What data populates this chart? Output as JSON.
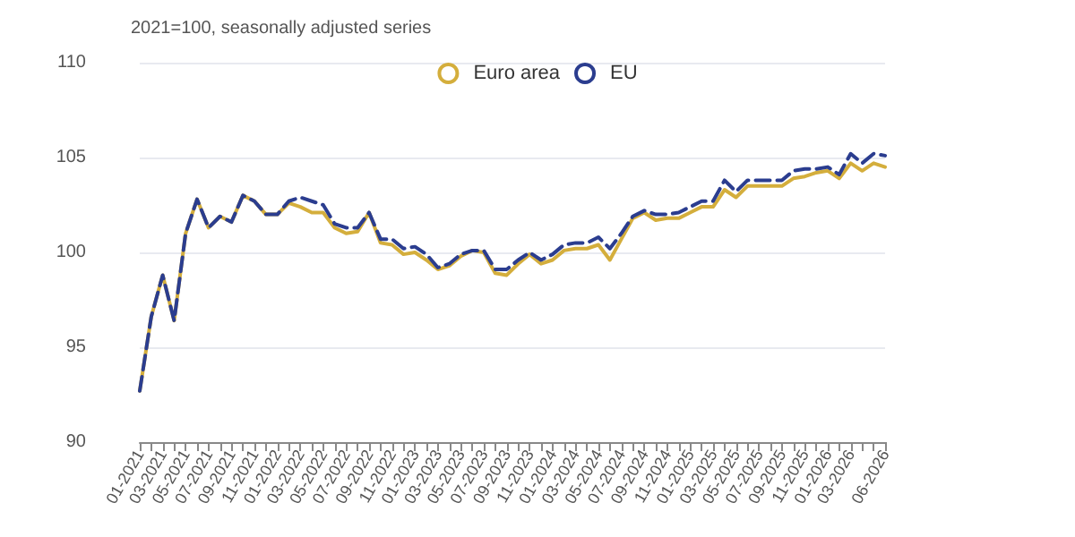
{
  "chart_data": {
    "type": "line",
    "subtitle": "2021=100, seasonally adjusted series",
    "categories": [
      "01-2021",
      null,
      "03-2021",
      null,
      "05-2021",
      null,
      "07-2021",
      null,
      "09-2021",
      null,
      "11-2021",
      null,
      "01-2022",
      null,
      "03-2022",
      null,
      "05-2022",
      null,
      "07-2022",
      null,
      "09-2022",
      null,
      "11-2022",
      null,
      "01-2023",
      null,
      "03-2023",
      null,
      "05-2023",
      null,
      "07-2023",
      null,
      "09-2023",
      null,
      "11-2023",
      null,
      "01-2024",
      null,
      "03-2024",
      null,
      "05-2024",
      null,
      "07-2024",
      null,
      "09-2024",
      null,
      "11-2024",
      null,
      "01-2025",
      null,
      "03-2025",
      null,
      "05-2025",
      null,
      "07-2025",
      null,
      "09-2025",
      null,
      "11-2025",
      null,
      "01-2026",
      null,
      "03-2026",
      null,
      null,
      "06-2026"
    ],
    "series": [
      {
        "name": "Euro area",
        "color": "#d4ae3c",
        "line_style": "solid",
        "values": [
          92.7,
          96.6,
          98.8,
          96.4,
          101.0,
          102.8,
          101.3,
          101.9,
          101.6,
          103.0,
          102.7,
          102.0,
          102.0,
          102.6,
          102.4,
          102.1,
          102.1,
          101.3,
          101.0,
          101.1,
          102.1,
          100.5,
          100.4,
          99.9,
          100.0,
          99.6,
          99.1,
          99.3,
          99.8,
          100.1,
          100.0,
          98.9,
          98.8,
          99.4,
          99.9,
          99.4,
          99.6,
          100.1,
          100.2,
          100.2,
          100.4,
          99.6,
          100.7,
          101.8,
          102.1,
          101.7,
          101.8,
          101.8,
          102.1,
          102.4,
          102.4,
          103.3,
          102.9,
          103.5,
          103.5,
          103.5,
          103.5,
          103.9,
          104.0,
          104.2,
          104.3,
          103.9,
          104.7,
          104.3,
          104.7,
          104.5
        ]
      },
      {
        "name": "EU",
        "color": "#2b3d8f",
        "line_style": "dashed",
        "values": [
          92.7,
          96.6,
          98.8,
          96.4,
          101.0,
          102.8,
          101.3,
          101.9,
          101.6,
          103.0,
          102.7,
          102.0,
          102.0,
          102.7,
          102.9,
          102.7,
          102.5,
          101.5,
          101.3,
          101.3,
          102.1,
          100.7,
          100.7,
          100.2,
          100.3,
          99.9,
          99.2,
          99.4,
          99.9,
          100.1,
          100.1,
          99.1,
          99.1,
          99.6,
          100.0,
          99.6,
          99.9,
          100.4,
          100.5,
          100.5,
          100.8,
          100.2,
          101.0,
          101.9,
          102.2,
          102.0,
          102.0,
          102.1,
          102.4,
          102.7,
          102.7,
          103.8,
          103.2,
          103.8,
          103.8,
          103.8,
          103.8,
          104.3,
          104.4,
          104.4,
          104.5,
          104.1,
          105.2,
          104.7,
          105.2,
          105.1
        ]
      }
    ],
    "ylim": [
      90,
      110
    ],
    "yticks": [
      90,
      95,
      100,
      105,
      110
    ],
    "grid": "y",
    "legend": "top",
    "marker": "none"
  }
}
